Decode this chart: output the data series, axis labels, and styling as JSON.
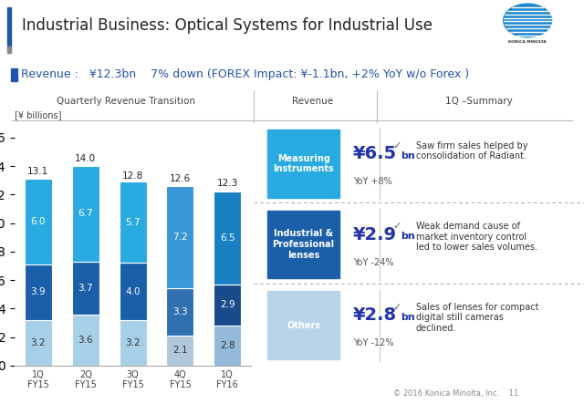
{
  "title": "Industrial Business: Optical Systems for Industrial Use",
  "chart_title": "Quarterly Revenue Transition",
  "chart_ylabel": "[¥ billions]",
  "quarters": [
    "1Q\nFY15",
    "2Q\nFY15",
    "3Q\nFY15",
    "4Q\nFY15",
    "1Q\nFY16"
  ],
  "totals": [
    13.1,
    14.0,
    12.8,
    12.6,
    12.3
  ],
  "seg1": [
    3.2,
    3.6,
    3.2,
    2.1,
    2.8
  ],
  "seg2": [
    3.9,
    3.7,
    4.0,
    3.3,
    2.9
  ],
  "seg3": [
    6.0,
    6.7,
    5.7,
    7.2,
    6.5
  ],
  "color_seg1_normal": "#a8cfe8",
  "color_seg2_normal": "#1a5fa8",
  "color_seg3_normal": "#29aae1",
  "color_seg1_last": "#93b8d8",
  "color_seg2_last": "#1a4a8a",
  "color_seg3_last": "#1a80c4",
  "color_seg1_q4": "#b0c8dc",
  "color_seg2_q4": "#3070b0",
  "color_seg3_q4": "#3898d8",
  "background": "#ffffff",
  "blue_accent": "#2255aa",
  "gray_accent": "#999999",
  "revenue_sections": [
    {
      "label": "Measuring\nInstruments",
      "color": "#29aae1",
      "amount_large": "¥6.5",
      "amount_small": "bn",
      "yoy": "YoY +8%",
      "summary": "Saw firm sales helped by\nconsolidation of Radiant."
    },
    {
      "label": "Industrial &\nProfessional\nlenses",
      "color": "#1a5fa8",
      "amount_large": "¥2.9",
      "amount_small": "bn",
      "yoy": "YoY -24%",
      "summary": "Weak demand cause of\nmarket inventory control\nled to lower sales volumes."
    },
    {
      "label": "Others",
      "color": "#b8d4ea",
      "amount_large": "¥2.8",
      "amount_small": "bn",
      "yoy": "YoY -12%",
      "summary": "Sales of lenses for compact\ndigital still cameras\ndeclined."
    }
  ],
  "footer": "© 2016 Konica Minolta, Inc.    11"
}
